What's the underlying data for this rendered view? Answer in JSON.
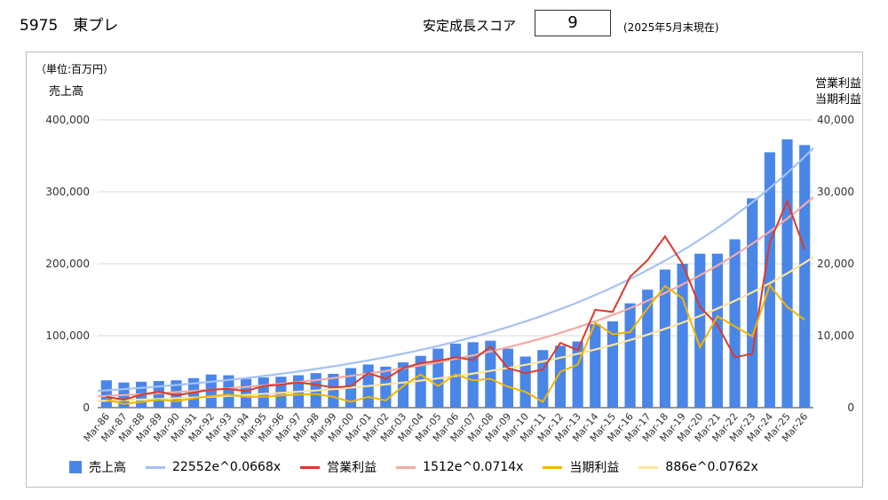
{
  "header": {
    "code_name": "5975　東プレ",
    "score_label": "安定成長スコア",
    "score_value": "9",
    "note": "(2025年5月末現在)"
  },
  "unit_label": "（単位:百万円）",
  "left_axis_label": "売上高",
  "right_axis_label_1": "営業利益",
  "right_axis_label_2": "当期利益",
  "legend": [
    {
      "label": "売上高",
      "color": "#4a86e8",
      "kind": "bar"
    },
    {
      "label": "22552e^0.0668x",
      "color": "#a4c2f4",
      "kind": "line"
    },
    {
      "label": "営業利益",
      "color": "#db3a2c",
      "kind": "line"
    },
    {
      "label": "1512e^0.0714x",
      "color": "#f4aaa3",
      "kind": "line"
    },
    {
      "label": "当期利益",
      "color": "#f3b400",
      "kind": "line"
    },
    {
      "label": "886e^0.0762x",
      "color": "#fce49a",
      "kind": "line"
    }
  ],
  "chart_data": {
    "type": "bar",
    "categories": [
      "Mar-86",
      "Mar-87",
      "Mar-88",
      "Mar-89",
      "Mar-90",
      "Mar-91",
      "Mar-92",
      "Mar-93",
      "Mar-94",
      "Mar-95",
      "Mar-96",
      "Mar-97",
      "Mar-98",
      "Mar-99",
      "Mar-00",
      "Mar-01",
      "Mar-02",
      "Mar-03",
      "Mar-04",
      "Mar-05",
      "Mar-06",
      "Mar-07",
      "Mar-08",
      "Mar-09",
      "Mar-10",
      "Mar-11",
      "Mar-12",
      "Mar-13",
      "Mar-14",
      "Mar-15",
      "Mar-16",
      "Mar-17",
      "Mar-18",
      "Mar-19",
      "Mar-20",
      "Mar-21",
      "Mar-22",
      "Mar-23",
      "Mar-24",
      "Mar-25",
      "Mar-26"
    ],
    "left_ticks": [
      "0",
      "100,000",
      "200,000",
      "300,000",
      "400,000"
    ],
    "right_ticks": [
      "0",
      "10,000",
      "20,000",
      "30,000",
      "40,000"
    ],
    "ylim_left": [
      0,
      400000
    ],
    "ylim_right": [
      0,
      40000
    ],
    "series": [
      {
        "name": "売上高",
        "axis": "left",
        "kind": "bar",
        "color": "#4a86e8",
        "values": [
          38000,
          35000,
          36000,
          37000,
          38000,
          41000,
          46000,
          45000,
          40000,
          42000,
          43000,
          45000,
          48000,
          47000,
          55000,
          60000,
          57000,
          63000,
          72000,
          82000,
          89000,
          91000,
          93000,
          82000,
          71000,
          80000,
          86000,
          92000,
          116000,
          120000,
          145000,
          164000,
          192000,
          200000,
          214000,
          214000,
          234000,
          291000,
          355000,
          373000,
          365000
        ]
      },
      {
        "name": "営業利益",
        "axis": "right",
        "kind": "line",
        "color": "#db3a2c",
        "values": [
          1500,
          1100,
          1800,
          2200,
          1700,
          2100,
          2500,
          2600,
          2300,
          3000,
          3200,
          3500,
          3200,
          2800,
          3000,
          4800,
          4000,
          5500,
          6200,
          6500,
          7000,
          6600,
          8500,
          5500,
          4800,
          5300,
          9000,
          8000,
          13600,
          13300,
          18200,
          20500,
          23800,
          20000,
          14000,
          11500,
          7000,
          7500,
          23000,
          28700,
          22000
        ]
      },
      {
        "name": "当期利益",
        "axis": "right",
        "kind": "line",
        "color": "#f3b400",
        "values": [
          1100,
          500,
          800,
          1100,
          900,
          1300,
          1600,
          1800,
          1500,
          1500,
          1700,
          1800,
          1900,
          1500,
          800,
          1500,
          1000,
          3000,
          4600,
          3000,
          4600,
          3800,
          4000,
          2900,
          2200,
          800,
          5000,
          6000,
          11800,
          10200,
          10500,
          13800,
          16900,
          15200,
          8400,
          12700,
          11300,
          9900,
          17000,
          14000,
          12200
        ]
      },
      {
        "name": "22552e^0.0668x",
        "axis": "left",
        "kind": "trend",
        "color": "#a4c2f4",
        "a": 22552,
        "b": 0.0668
      },
      {
        "name": "1512e^0.0714x",
        "axis": "right",
        "kind": "trend",
        "color": "#f4aaa3",
        "a": 1512,
        "b": 0.0714
      },
      {
        "name": "886e^0.0762x",
        "axis": "right",
        "kind": "trend",
        "color": "#fce49a",
        "a": 886,
        "b": 0.0762
      }
    ],
    "grid": true,
    "legend_position": "bottom"
  }
}
